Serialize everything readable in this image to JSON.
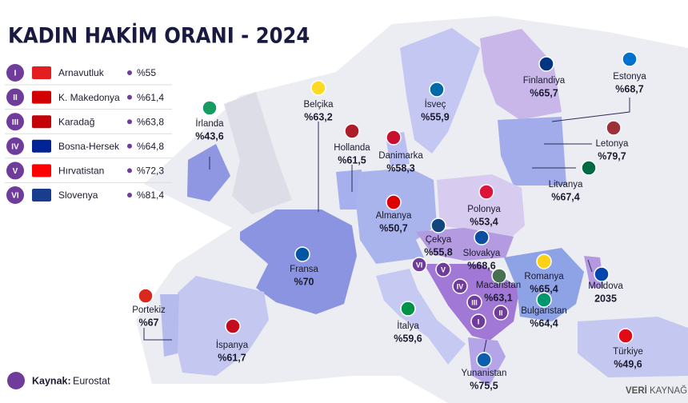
{
  "header": {
    "title": "KADIN HAKİM ORANI - 2024"
  },
  "legend": [
    {
      "numeral": "I",
      "name": "Arnavutluk",
      "value": "%55"
    },
    {
      "numeral": "II",
      "name": "K. Makedonya",
      "value": "%61,4"
    },
    {
      "numeral": "III",
      "name": "Karadağ",
      "value": "%63,8"
    },
    {
      "numeral": "IV",
      "name": "Bosna-Hersek",
      "value": "%64,8"
    },
    {
      "numeral": "V",
      "name": "Hırvatistan",
      "value": "%72,3"
    },
    {
      "numeral": "VI",
      "name": "Slovenya",
      "value": "%81,4"
    }
  ],
  "countries": [
    {
      "name": "Finlandiya",
      "value": "%65,7"
    },
    {
      "name": "Estonya",
      "value": "%68,7"
    },
    {
      "name": "Letonya",
      "value": "%79,7"
    },
    {
      "name": "Litvanya",
      "value": "%67,4"
    },
    {
      "name": "İsveç",
      "value": "%55,9"
    },
    {
      "name": "Danimarka",
      "value": "%58,3"
    },
    {
      "name": "Hollanda",
      "value": "%61,5"
    },
    {
      "name": "Belçika",
      "value": "%63,2"
    },
    {
      "name": "İrlanda",
      "value": "%43,6"
    },
    {
      "name": "Almanya",
      "value": "%50,7"
    },
    {
      "name": "Polonya",
      "value": "%53,4"
    },
    {
      "name": "Çekya",
      "value": "%55,8"
    },
    {
      "name": "Slovakya",
      "value": "%68,6"
    },
    {
      "name": "Fransa",
      "value": "%70"
    },
    {
      "name": "Macaristan",
      "value": "%63,1"
    },
    {
      "name": "Romanya",
      "value": "%65,4"
    },
    {
      "name": "Moldova",
      "value": "2035"
    },
    {
      "name": "Bulgaristan",
      "value": "%64,4"
    },
    {
      "name": "Portekiz",
      "value": "%67"
    },
    {
      "name": "İspanya",
      "value": "%61,7"
    },
    {
      "name": "İtalya",
      "value": "%59,6"
    },
    {
      "name": "Türkiye",
      "value": "%49,6"
    },
    {
      "name": "Yunanistan",
      "value": "%75,5"
    }
  ],
  "source": {
    "label": "Kaynak:",
    "value": "Eurostat"
  },
  "brand": {
    "bold": "VERİ",
    "rest": "KAYNAĞI"
  }
}
